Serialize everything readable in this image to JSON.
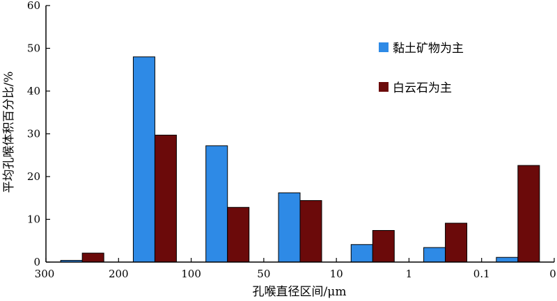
{
  "chart_data": {
    "type": "bar",
    "xlabel": "孔喉直径区间/μm",
    "ylabel": "平均孔喉体积百分比/%",
    "ylim": [
      0,
      60
    ],
    "yticks": [
      "0",
      "10",
      "20",
      "30",
      "40",
      "50",
      "60"
    ],
    "x_boundary_labels": [
      "300",
      "200",
      "100",
      "50",
      "10",
      "1",
      "0.1",
      "0"
    ],
    "categories": [
      "300-200",
      "200-100",
      "100-50",
      "50-10",
      "10-1",
      "1-0.1",
      "0.1-0"
    ],
    "series": [
      {
        "name": "黏土矿物为主",
        "color": "#2e8ae6",
        "values": [
          0.4,
          48,
          27.2,
          16.2,
          4.1,
          3.4,
          1.1
        ]
      },
      {
        "name": "白云石为主",
        "color": "#6b0a0a",
        "values": [
          2.1,
          29.7,
          12.8,
          14.4,
          7.4,
          9.1,
          22.6
        ]
      }
    ],
    "legend_position": "top-right",
    "grid": false
  }
}
